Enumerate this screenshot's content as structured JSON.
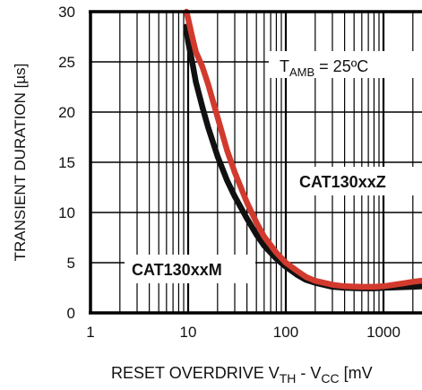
{
  "chart_data": {
    "type": "line",
    "x_scale": "log",
    "xlim": [
      1,
      3000
    ],
    "ylim": [
      0,
      30
    ],
    "grid": true,
    "xticks": [
      1,
      10,
      100,
      1000
    ],
    "xtick_labels": [
      "1",
      "10",
      "100",
      "1000"
    ],
    "yticks": [
      0,
      5,
      10,
      15,
      20,
      25,
      30
    ],
    "ytick_labels": [
      "0",
      "5",
      "10",
      "15",
      "20",
      "25",
      "30"
    ],
    "ylabel": "TRANSIENT DURATION [µs]",
    "xlabel": {
      "prefix": "RESET OVERDRIVE V",
      "sub1": "TH",
      "middle": " - V",
      "sub2": "CC",
      "suffix": " [mV"
    },
    "annotation": {
      "prefix": "T",
      "sub": "AMB",
      "suffix": " = 25ºC"
    },
    "series": [
      {
        "name": "CAT130xxM",
        "color": "#111111",
        "x": [
          9.5,
          10,
          11,
          12,
          14,
          16,
          20,
          25,
          30,
          40,
          50,
          60,
          80,
          100,
          130,
          160,
          200,
          300,
          400,
          600,
          800,
          1000,
          1500,
          2000,
          3000
        ],
        "y": [
          28.5,
          27.0,
          25.0,
          23.0,
          20.5,
          18.5,
          15.6,
          13.2,
          11.6,
          9.4,
          7.8,
          6.7,
          5.4,
          4.6,
          3.8,
          3.3,
          3.0,
          2.6,
          2.5,
          2.45,
          2.45,
          2.5,
          2.55,
          2.6,
          2.7
        ]
      },
      {
        "name": "CAT130xxZ",
        "color": "#d23a2e",
        "x": [
          9.6,
          10,
          11,
          12,
          14,
          16,
          20,
          25,
          30,
          40,
          50,
          60,
          80,
          100,
          130,
          160,
          200,
          300,
          400,
          600,
          800,
          1000,
          1500,
          2000,
          3000
        ],
        "y": [
          30.0,
          29.3,
          27.5,
          26.0,
          24.5,
          22.8,
          19.5,
          16.2,
          14.0,
          11.0,
          9.0,
          7.6,
          6.0,
          5.0,
          4.2,
          3.6,
          3.2,
          2.8,
          2.65,
          2.6,
          2.6,
          2.65,
          2.9,
          3.1,
          3.3
        ]
      }
    ]
  }
}
